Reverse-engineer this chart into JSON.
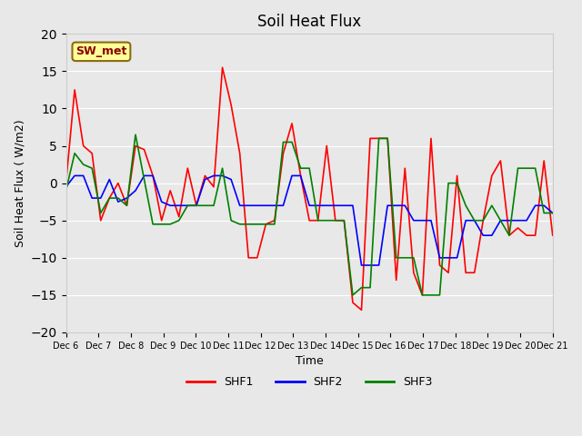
{
  "title": "Soil Heat Flux",
  "ylabel": "Soil Heat Flux ( W/m2)",
  "xlabel": "Time",
  "ylim": [
    -20,
    20
  ],
  "yticks": [
    -20,
    -15,
    -10,
    -5,
    0,
    5,
    10,
    15,
    20
  ],
  "background_color": "#e8e8e8",
  "plot_bg_color": "#e8e8e8",
  "annotation_label": "SW_met",
  "annotation_color": "#8B0000",
  "annotation_bg": "#FFFF99",
  "x_labels": [
    "Dec 6",
    "Dec 7",
    "Dec 8",
    "Dec 9",
    "Dec 10",
    "Dec 11",
    "Dec 12",
    "Dec 13",
    "Dec 14",
    "Dec 15",
    "Dec 16",
    "Dec 17",
    "Dec 18",
    "Dec 19",
    "Dec 20",
    "Dec 21"
  ],
  "shf1": [
    0,
    12.5,
    5,
    4,
    -5,
    -2,
    0,
    -3,
    5,
    4.5,
    1,
    -5,
    -1,
    -4.5,
    2,
    -3,
    1,
    -0.5,
    15.5,
    10.5,
    4,
    -10,
    -10,
    -5.5,
    -5,
    4,
    8,
    1,
    -5,
    -5,
    5,
    -5,
    -5,
    -16,
    -17,
    6,
    6,
    6,
    -13,
    2,
    -12,
    -15,
    6,
    -11,
    -12,
    1,
    -12,
    -12,
    -5,
    1,
    3,
    -7,
    -6,
    -7,
    -7,
    3,
    -7
  ],
  "shf2": [
    -0.5,
    1,
    1,
    -2,
    -2,
    0.5,
    -2.5,
    -2,
    -1,
    1,
    1,
    -2.5,
    -3,
    -3,
    -3,
    -3,
    0.5,
    1,
    1,
    0.5,
    -3,
    -3,
    -3,
    -3,
    -3,
    -3,
    1,
    1,
    -3,
    -3,
    -3,
    -3,
    -3,
    -3,
    -11,
    -11,
    -11,
    -3,
    -3,
    -3,
    -5,
    -5,
    -5,
    -10,
    -10,
    -10,
    -5,
    -5,
    -7,
    -7,
    -5,
    -5,
    -5,
    -5,
    -3,
    -3,
    -4
  ],
  "shf3": [
    -1,
    4,
    2.5,
    2,
    -4,
    -2,
    -2,
    -3,
    6.5,
    0.5,
    -5.5,
    -5.5,
    -5.5,
    -5,
    -3,
    -3,
    -3,
    -3,
    2,
    -5,
    -5.5,
    -5.5,
    -5.5,
    -5.5,
    -5.5,
    5.5,
    5.5,
    2,
    2,
    -5,
    -5,
    -5,
    -5,
    -15,
    -14,
    -14,
    6,
    6,
    -10,
    -10,
    -10,
    -15,
    -15,
    -15,
    0,
    0,
    -3,
    -5,
    -5,
    -3,
    -5,
    -7,
    2,
    2,
    2,
    -4,
    -4
  ],
  "line_colors": [
    "red",
    "blue",
    "green"
  ],
  "legend_labels": [
    "SHF1",
    "SHF2",
    "SHF3"
  ]
}
